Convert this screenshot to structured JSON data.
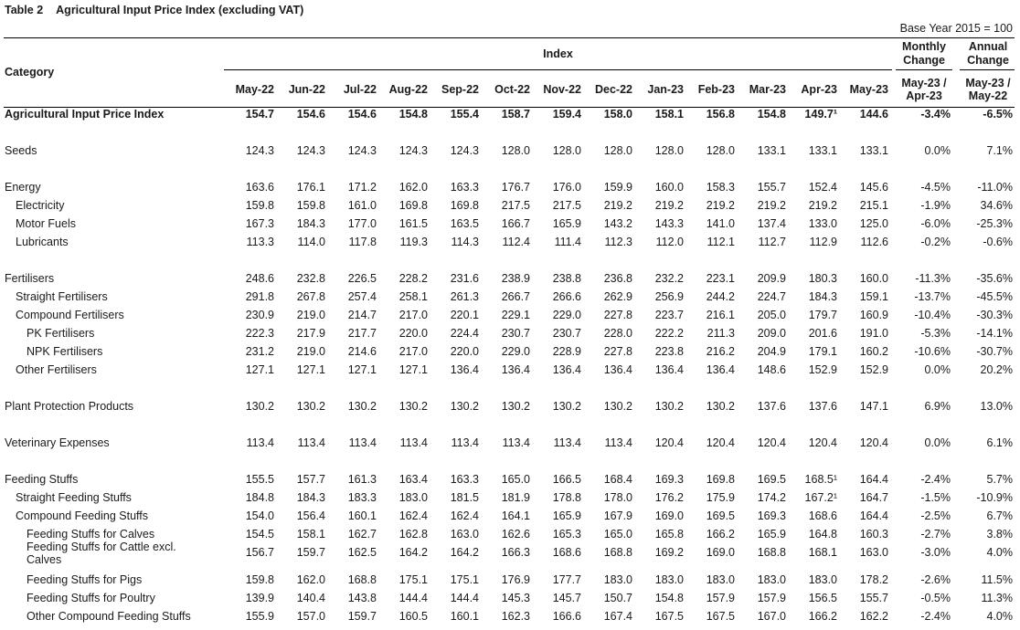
{
  "table": {
    "number": "Table 2",
    "title": "Agricultural Input Price Index (excluding VAT)",
    "base_year": "Base Year 2015 = 100",
    "category_header": "Category",
    "index_header": "Index",
    "monthly_change_header": [
      "Monthly",
      "Change"
    ],
    "annual_change_header": [
      "Annual",
      "Change"
    ],
    "months": [
      "May-22",
      "Jun-22",
      "Jul-22",
      "Aug-22",
      "Sep-22",
      "Oct-22",
      "Nov-22",
      "Dec-22",
      "Jan-23",
      "Feb-23",
      "Mar-23",
      "Apr-23",
      "May-23"
    ],
    "monthly_change_sub": [
      "May-23 /",
      "Apr-23"
    ],
    "annual_change_sub": [
      "May-23 /",
      "May-22"
    ]
  },
  "rows": [
    {
      "label": "Agricultural Input Price Index",
      "level": 0,
      "bold": true,
      "values": [
        "154.7",
        "154.6",
        "154.6",
        "154.8",
        "155.4",
        "158.7",
        "159.4",
        "158.0",
        "158.1",
        "156.8",
        "154.8",
        "149.7¹",
        "144.6"
      ],
      "monthly": "-3.4%",
      "annual": "-6.5%"
    },
    {
      "label": "Seeds",
      "level": 0,
      "values": [
        "124.3",
        "124.3",
        "124.3",
        "124.3",
        "124.3",
        "128.0",
        "128.0",
        "128.0",
        "128.0",
        "128.0",
        "133.1",
        "133.1",
        "133.1"
      ],
      "monthly": "0.0%",
      "annual": "7.1%"
    },
    {
      "label": "Energy",
      "level": 0,
      "values": [
        "163.6",
        "176.1",
        "171.2",
        "162.0",
        "163.3",
        "176.7",
        "176.0",
        "159.9",
        "160.0",
        "158.3",
        "155.7",
        "152.4",
        "145.6"
      ],
      "monthly": "-4.5%",
      "annual": "-11.0%"
    },
    {
      "label": "Electricity",
      "level": 1,
      "values": [
        "159.8",
        "159.8",
        "161.0",
        "169.8",
        "169.8",
        "217.5",
        "217.5",
        "219.2",
        "219.2",
        "219.2",
        "219.2",
        "219.2",
        "215.1"
      ],
      "monthly": "-1.9%",
      "annual": "34.6%"
    },
    {
      "label": "Motor Fuels",
      "level": 1,
      "values": [
        "167.3",
        "184.3",
        "177.0",
        "161.5",
        "163.5",
        "166.7",
        "165.9",
        "143.2",
        "143.3",
        "141.0",
        "137.4",
        "133.0",
        "125.0"
      ],
      "monthly": "-6.0%",
      "annual": "-25.3%"
    },
    {
      "label": "Lubricants",
      "level": 1,
      "values": [
        "113.3",
        "114.0",
        "117.8",
        "119.3",
        "114.3",
        "112.4",
        "111.4",
        "112.3",
        "112.0",
        "112.1",
        "112.7",
        "112.9",
        "112.6"
      ],
      "monthly": "-0.2%",
      "annual": "-0.6%"
    },
    {
      "label": "Fertilisers",
      "level": 0,
      "values": [
        "248.6",
        "232.8",
        "226.5",
        "228.2",
        "231.6",
        "238.9",
        "238.8",
        "236.8",
        "232.2",
        "223.1",
        "209.9",
        "180.3",
        "160.0"
      ],
      "monthly": "-11.3%",
      "annual": "-35.6%"
    },
    {
      "label": "Straight Fertilisers",
      "level": 1,
      "values": [
        "291.8",
        "267.8",
        "257.4",
        "258.1",
        "261.3",
        "266.7",
        "266.6",
        "262.9",
        "256.9",
        "244.2",
        "224.7",
        "184.3",
        "159.1"
      ],
      "monthly": "-13.7%",
      "annual": "-45.5%"
    },
    {
      "label": "Compound Fertilisers",
      "level": 1,
      "values": [
        "230.9",
        "219.0",
        "214.7",
        "217.0",
        "220.1",
        "229.1",
        "229.0",
        "227.8",
        "223.7",
        "216.1",
        "205.0",
        "179.7",
        "160.9"
      ],
      "monthly": "-10.4%",
      "annual": "-30.3%"
    },
    {
      "label": "PK Fertilisers",
      "level": 2,
      "values": [
        "222.3",
        "217.9",
        "217.7",
        "220.0",
        "224.4",
        "230.7",
        "230.7",
        "228.0",
        "222.2",
        "211.3",
        "209.0",
        "201.6",
        "191.0"
      ],
      "monthly": "-5.3%",
      "annual": "-14.1%"
    },
    {
      "label": "NPK Fertilisers",
      "level": 2,
      "values": [
        "231.2",
        "219.0",
        "214.6",
        "217.0",
        "220.0",
        "229.0",
        "228.9",
        "227.8",
        "223.8",
        "216.2",
        "204.9",
        "179.1",
        "160.2"
      ],
      "monthly": "-10.6%",
      "annual": "-30.7%"
    },
    {
      "label": "Other Fertilisers",
      "level": 1,
      "values": [
        "127.1",
        "127.1",
        "127.1",
        "127.1",
        "136.4",
        "136.4",
        "136.4",
        "136.4",
        "136.4",
        "136.4",
        "148.6",
        "152.9",
        "152.9"
      ],
      "monthly": "0.0%",
      "annual": "20.2%"
    },
    {
      "label": "Plant Protection Products",
      "level": 0,
      "values": [
        "130.2",
        "130.2",
        "130.2",
        "130.2",
        "130.2",
        "130.2",
        "130.2",
        "130.2",
        "130.2",
        "130.2",
        "137.6",
        "137.6",
        "147.1"
      ],
      "monthly": "6.9%",
      "annual": "13.0%"
    },
    {
      "label": "Veterinary Expenses",
      "level": 0,
      "values": [
        "113.4",
        "113.4",
        "113.4",
        "113.4",
        "113.4",
        "113.4",
        "113.4",
        "113.4",
        "120.4",
        "120.4",
        "120.4",
        "120.4",
        "120.4"
      ],
      "monthly": "0.0%",
      "annual": "6.1%"
    },
    {
      "label": "Feeding Stuffs",
      "level": 0,
      "values": [
        "155.5",
        "157.7",
        "161.3",
        "163.4",
        "163.3",
        "165.0",
        "166.5",
        "168.4",
        "169.3",
        "169.8",
        "169.5",
        "168.5¹",
        "164.4"
      ],
      "monthly": "-2.4%",
      "annual": "5.7%"
    },
    {
      "label": "Straight Feeding Stuffs",
      "level": 1,
      "values": [
        "184.8",
        "184.3",
        "183.3",
        "183.0",
        "181.5",
        "181.9",
        "178.8",
        "178.0",
        "176.2",
        "175.9",
        "174.2",
        "167.2¹",
        "164.7"
      ],
      "monthly": "-1.5%",
      "annual": "-10.9%"
    },
    {
      "label": "Compound Feeding Stuffs",
      "level": 1,
      "values": [
        "154.0",
        "156.4",
        "160.1",
        "162.4",
        "162.4",
        "164.1",
        "165.9",
        "167.9",
        "169.0",
        "169.5",
        "169.3",
        "168.6",
        "164.4"
      ],
      "monthly": "-2.5%",
      "annual": "6.7%"
    },
    {
      "label": "Feeding Stuffs for Calves",
      "level": 2,
      "values": [
        "154.5",
        "158.1",
        "162.7",
        "162.8",
        "163.0",
        "162.6",
        "165.3",
        "165.0",
        "165.8",
        "166.2",
        "165.9",
        "164.8",
        "160.3"
      ],
      "monthly": "-2.7%",
      "annual": "3.8%"
    },
    {
      "label": "Feeding Stuffs for Cattle excl. Calves",
      "label_lines": [
        "Feeding Stuffs for Cattle excl.",
        "Calves"
      ],
      "level": 2,
      "values": [
        "156.7",
        "159.7",
        "162.5",
        "164.2",
        "164.2",
        "166.3",
        "168.6",
        "168.8",
        "169.2",
        "169.0",
        "168.8",
        "168.1",
        "163.0"
      ],
      "monthly": "-3.0%",
      "annual": "4.0%"
    },
    {
      "label": "Feeding Stuffs for Pigs",
      "level": 2,
      "values": [
        "159.8",
        "162.0",
        "168.8",
        "175.1",
        "175.1",
        "176.9",
        "177.7",
        "183.0",
        "183.0",
        "183.0",
        "183.0",
        "183.0",
        "178.2"
      ],
      "monthly": "-2.6%",
      "annual": "11.5%"
    },
    {
      "label": "Feeding Stuffs for Poultry",
      "level": 2,
      "values": [
        "139.9",
        "140.4",
        "143.8",
        "144.4",
        "144.4",
        "145.3",
        "145.7",
        "150.7",
        "154.8",
        "157.9",
        "157.9",
        "156.5",
        "155.7"
      ],
      "monthly": "-0.5%",
      "annual": "11.3%"
    },
    {
      "label": "Other Compound Feeding Stuffs",
      "level": 2,
      "values": [
        "155.9",
        "157.0",
        "159.7",
        "160.5",
        "160.1",
        "162.3",
        "166.6",
        "167.4",
        "167.5",
        "167.5",
        "167.0",
        "166.2",
        "162.2"
      ],
      "monthly": "-2.4%",
      "annual": "4.0%"
    }
  ]
}
